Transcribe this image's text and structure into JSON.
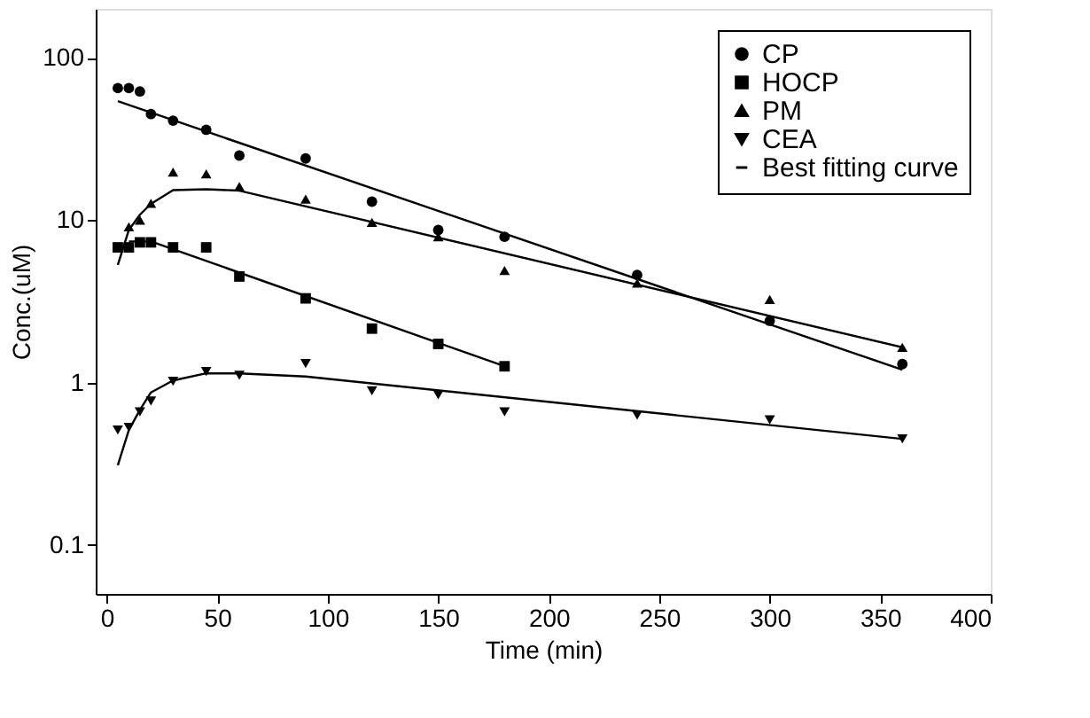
{
  "chart_data": {
    "type": "scatter",
    "xlabel": "Time (min)",
    "ylabel": "Conc.(uM)",
    "log": "y",
    "xlim": [
      -5,
      400
    ],
    "xticks": [
      0,
      50,
      100,
      150,
      200,
      250,
      300,
      350,
      400
    ],
    "ylim": [
      0.05,
      200
    ],
    "yticks": [
      0.1,
      1,
      10,
      100
    ],
    "grid": false,
    "legend": "top right",
    "series": [
      {
        "name": "CP",
        "color": "#000000",
        "marker": "circle",
        "x": [
          5,
          10,
          15,
          20,
          30,
          45,
          60,
          90,
          120,
          150,
          180,
          240,
          300,
          360
        ],
        "values": [
          65,
          65,
          62,
          45,
          41,
          36,
          25,
          24,
          13,
          8.7,
          7.9,
          4.6,
          2.4,
          1.3
        ]
      },
      {
        "name": "HOCP",
        "color": "#000000",
        "marker": "square",
        "x": [
          5,
          10,
          15,
          20,
          30,
          45,
          60,
          90,
          120,
          150,
          180
        ],
        "values": [
          6.8,
          6.8,
          7.3,
          7.3,
          6.8,
          6.8,
          4.5,
          3.3,
          2.15,
          1.73,
          1.26
        ]
      },
      {
        "name": "PM",
        "color": "#000000",
        "marker": "triangle",
        "x": [
          10,
          15,
          20,
          30,
          45,
          60,
          90,
          120,
          150,
          180,
          240,
          300,
          360
        ],
        "values": [
          9.1,
          10,
          12.7,
          19.8,
          19.3,
          16.1,
          13.5,
          9.7,
          7.9,
          4.9,
          4.1,
          3.25,
          1.65
        ]
      },
      {
        "name": "CEA",
        "color": "#000000",
        "marker": "triangle-down",
        "x": [
          5,
          10,
          15,
          20,
          30,
          45,
          60,
          90,
          120,
          150,
          180,
          240,
          300,
          360
        ],
        "values": [
          0.51,
          0.53,
          0.66,
          0.77,
          1.02,
          1.17,
          1.11,
          1.31,
          0.89,
          0.84,
          0.66,
          0.63,
          0.59,
          0.45
        ]
      },
      {
        "name": "Best fitting curve",
        "type": "line",
        "color": "#000000",
        "marker": "none",
        "x": [
          5,
          360
        ],
        "values": [
          54,
          1.2
        ]
      },
      {
        "type": "line",
        "color": "#000000",
        "marker": "none",
        "x": [
          5,
          10,
          15,
          20,
          30,
          45,
          60,
          360
        ],
        "values": [
          5.3,
          8.7,
          10.8,
          12.6,
          15.3,
          15.5,
          15.2,
          1.65
        ]
      },
      {
        "type": "line",
        "color": "#000000",
        "marker": "none",
        "x": [
          10,
          20,
          180
        ],
        "values": [
          7.4,
          7.4,
          1.26
        ]
      },
      {
        "type": "line",
        "color": "#000000",
        "marker": "none",
        "x": [
          5,
          10,
          15,
          20,
          30,
          45,
          60,
          90,
          360
        ],
        "values": [
          0.31,
          0.51,
          0.68,
          0.87,
          1.03,
          1.14,
          1.14,
          1.09,
          0.45
        ]
      }
    ]
  }
}
